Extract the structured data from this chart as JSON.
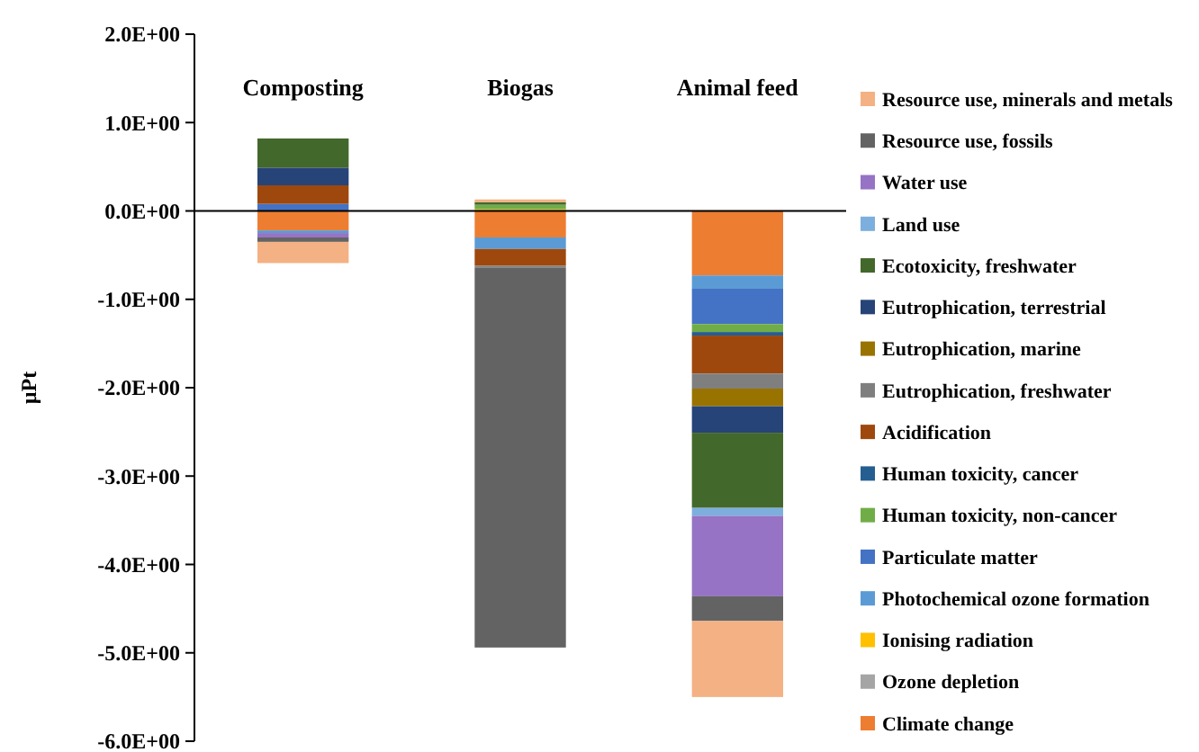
{
  "chart_data": {
    "type": "bar",
    "stacked": true,
    "ylabel": "µPt",
    "categories": [
      "Composting",
      "Biogas",
      "Animal feed"
    ],
    "ylim": [
      -6,
      2
    ],
    "yticks": [
      {
        "value": 2,
        "label": "2.0E+00"
      },
      {
        "value": 1,
        "label": "1.0E+00"
      },
      {
        "value": 0,
        "label": "0.0E+00"
      },
      {
        "value": -1,
        "label": "-1.0E+00"
      },
      {
        "value": -2,
        "label": "-2.0E+00"
      },
      {
        "value": -3,
        "label": "-3.0E+00"
      },
      {
        "value": -4,
        "label": "-4.0E+00"
      },
      {
        "value": -5,
        "label": "-5.0E+00"
      },
      {
        "value": -6,
        "label": "-6.0E+00"
      }
    ],
    "legend": "right",
    "series": [
      {
        "name": "Climate change",
        "color": "#ed7d31",
        "values": [
          -0.22,
          -0.3,
          -0.73
        ]
      },
      {
        "name": "Ozone depletion",
        "color": "#a5a5a5",
        "values": [
          0,
          0,
          0
        ]
      },
      {
        "name": "Ionising radiation",
        "color": "#ffc000",
        "values": [
          0,
          0.02,
          0
        ]
      },
      {
        "name": "Photochemical ozone formation",
        "color": "#5b9bd5",
        "values": [
          -0.03,
          -0.13,
          -0.15
        ]
      },
      {
        "name": "Particulate matter",
        "color": "#4472c4",
        "values": [
          0.08,
          0,
          -0.4
        ]
      },
      {
        "name": "Human toxicity, non-cancer",
        "color": "#70ad47",
        "values": [
          0,
          0.05,
          -0.09
        ]
      },
      {
        "name": "Human toxicity, cancer",
        "color": "#255e91",
        "values": [
          0,
          0,
          -0.04
        ]
      },
      {
        "name": "Acidification",
        "color": "#9e480e",
        "values": [
          0.21,
          -0.19,
          -0.43
        ]
      },
      {
        "name": "Eutrophication, freshwater",
        "color": "#7f7f7f",
        "values": [
          0,
          -0.02,
          -0.17
        ]
      },
      {
        "name": "Eutrophication, marine",
        "color": "#997300",
        "values": [
          0,
          0,
          -0.2
        ]
      },
      {
        "name": "Eutrophication, terrestrial",
        "color": "#264478",
        "values": [
          0.2,
          0,
          -0.3
        ]
      },
      {
        "name": "Ecotoxicity, freshwater",
        "color": "#43682b",
        "values": [
          0.33,
          0.03,
          -0.85
        ]
      },
      {
        "name": "Land use",
        "color": "#7cafdd",
        "values": [
          0,
          0,
          -0.09
        ]
      },
      {
        "name": "Water use",
        "color": "#9673c4",
        "values": [
          -0.05,
          0,
          -0.91
        ]
      },
      {
        "name": "Resource use, fossils",
        "color": "#636363",
        "values": [
          -0.05,
          -4.3,
          -0.28
        ]
      },
      {
        "name": "Resource use, minerals and metals",
        "color": "#f4b183",
        "values": [
          -0.24,
          0.03,
          -0.86
        ]
      }
    ]
  }
}
